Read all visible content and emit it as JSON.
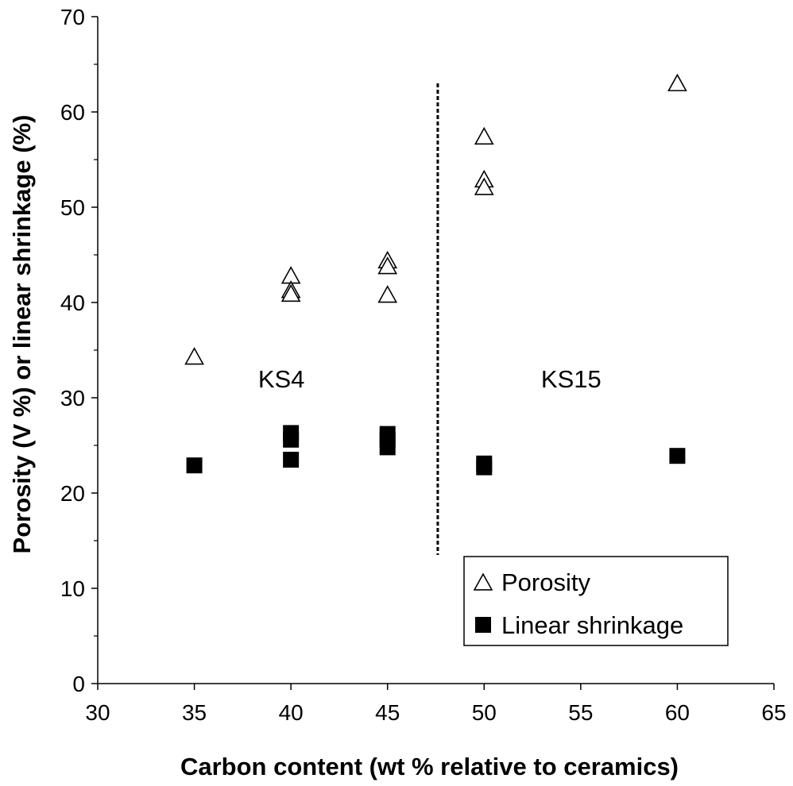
{
  "chart_data": {
    "type": "scatter",
    "title": "",
    "xlabel": "Carbon content (wt % relative to ceramics)",
    "ylabel": "Porosity (V %) or linear shrinkage (%)",
    "xlim": [
      30,
      65
    ],
    "ylim": [
      0,
      70
    ],
    "xticks": [
      30,
      35,
      40,
      45,
      50,
      55,
      60,
      65
    ],
    "yticks": [
      0,
      10,
      20,
      30,
      40,
      50,
      60,
      70
    ],
    "x_minor_step": 5,
    "y_minor_step": 5,
    "grid": false,
    "legend_position": "bottom-right",
    "series": [
      {
        "name": "Porosity",
        "marker": "open-triangle",
        "color": "#000000",
        "points": [
          {
            "x": 35,
            "y": 34.2
          },
          {
            "x": 40,
            "y": 42.7
          },
          {
            "x": 40,
            "y": 41.2
          },
          {
            "x": 40,
            "y": 40.8
          },
          {
            "x": 45,
            "y": 44.3
          },
          {
            "x": 45,
            "y": 43.7
          },
          {
            "x": 45,
            "y": 40.7
          },
          {
            "x": 50,
            "y": 57.3
          },
          {
            "x": 50,
            "y": 52.8
          },
          {
            "x": 50,
            "y": 52.0
          },
          {
            "x": 60,
            "y": 62.9
          }
        ]
      },
      {
        "name": "Linear shrinkage",
        "marker": "filled-square",
        "color": "#000000",
        "points": [
          {
            "x": 35,
            "y": 22.9
          },
          {
            "x": 40,
            "y": 26.3
          },
          {
            "x": 40,
            "y": 25.6
          },
          {
            "x": 40,
            "y": 23.5
          },
          {
            "x": 45,
            "y": 26.2
          },
          {
            "x": 45,
            "y": 25.6
          },
          {
            "x": 45,
            "y": 24.8
          },
          {
            "x": 50,
            "y": 23.1
          },
          {
            "x": 50,
            "y": 22.7
          },
          {
            "x": 60,
            "y": 23.9
          }
        ]
      }
    ],
    "divider": {
      "x": 47.6,
      "y_from": 13.5,
      "y_to": 63,
      "style": "dashed"
    },
    "annotations": [
      {
        "text": "KS4",
        "x": 40,
        "y": 32
      },
      {
        "text": "KS15",
        "x": 55,
        "y": 32
      }
    ]
  }
}
